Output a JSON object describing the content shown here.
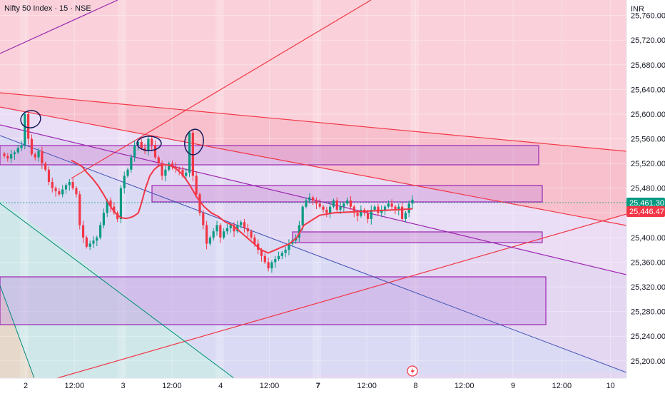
{
  "chart_data": {
    "type": "candlestick",
    "title": "Nifty 50 Index · 15 · NSE",
    "currency": "INR",
    "y_ticks": [
      "25,760.00",
      "25,720.00",
      "25,680.00",
      "25,640.00",
      "25,600.00",
      "25,560.00",
      "25,520.00",
      "25,480.00",
      "25,440.00",
      "25,400.00",
      "25,360.00",
      "25,320.00",
      "25,280.00",
      "25,240.00",
      "25,200.00"
    ],
    "y_tick_values": [
      25760,
      25720,
      25680,
      25640,
      25600,
      25560,
      25520,
      25480,
      25440,
      25400,
      25360,
      25320,
      25280,
      25240,
      25200
    ],
    "ylim": [
      25172,
      25785
    ],
    "x_ticks": [
      {
        "label": "2",
        "bold": false
      },
      {
        "label": "12:00",
        "bold": false
      },
      {
        "label": "3",
        "bold": false
      },
      {
        "label": "12:00",
        "bold": false
      },
      {
        "label": "4",
        "bold": false
      },
      {
        "label": "12:00",
        "bold": false
      },
      {
        "label": "7",
        "bold": true
      },
      {
        "label": "12:00",
        "bold": false
      },
      {
        "label": "8",
        "bold": false
      },
      {
        "label": "12:00",
        "bold": false
      },
      {
        "label": "9",
        "bold": false
      },
      {
        "label": "12:00",
        "bold": false
      },
      {
        "label": "10",
        "bold": false
      }
    ],
    "last_price": {
      "label": "25,461.30",
      "value": 25461.3,
      "color": "#089981"
    },
    "ma_price": {
      "label": "25,446.47",
      "value": 25446.47,
      "color": "#f23645"
    },
    "closes": [
      25532,
      25528,
      25535,
      25538,
      25545,
      25550,
      25600,
      25560,
      25535,
      25530,
      25540,
      25520,
      25510,
      25490,
      25480,
      25475,
      25470,
      25478,
      25485,
      25490,
      25480,
      25470,
      25420,
      25400,
      25385,
      25390,
      25395,
      25400,
      25420,
      25440,
      25460,
      25450,
      25440,
      25430,
      25480,
      25500,
      25510,
      25530,
      25550,
      25555,
      25545,
      25540,
      25560,
      25550,
      25530,
      25520,
      25500,
      25510,
      25520,
      25515,
      25512,
      25510,
      25500,
      25505,
      25570,
      25500,
      25470,
      25440,
      25420,
      25390,
      25400,
      25410,
      25420,
      25400,
      25410,
      25415,
      25420,
      25410,
      25420,
      25425,
      25415,
      25410,
      25400,
      25390,
      25380,
      25370,
      25360,
      25350,
      25360,
      25365,
      25370,
      25375,
      25380,
      25390,
      25395,
      25400,
      25420,
      25450,
      25460,
      25465,
      25460,
      25455,
      25450,
      25445,
      25440,
      25450,
      25460,
      25445,
      25450,
      25455,
      25460,
      25450,
      25440,
      25435,
      25445,
      25440,
      25430,
      25445,
      25450,
      25440,
      25445,
      25450,
      25455,
      25450,
      25445,
      25450,
      25430,
      25440,
      25455,
      25461.3
    ],
    "ma_values": [
      25525,
      25520,
      25515,
      25505,
      25495,
      25483,
      25470,
      25460,
      25450,
      25442,
      25436,
      25432,
      25431,
      25432,
      25435,
      25440,
      25455,
      25480,
      25500,
      25510,
      25516,
      25518,
      25517,
      25512,
      25502,
      25485,
      25465,
      25450,
      25440,
      25434,
      25425,
      25420,
      25410,
      25400,
      25390,
      25380,
      25375,
      25380,
      25385,
      25390,
      25400,
      25420,
      25436,
      25440,
      25442,
      25444,
      25446.47
    ],
    "ma_x": [
      100,
      108,
      115,
      122,
      130,
      138,
      145,
      150,
      155,
      160,
      165,
      170,
      176,
      182,
      188,
      194,
      198,
      204,
      210,
      216,
      222,
      230,
      238,
      246,
      256,
      266,
      276,
      286,
      296,
      306,
      316,
      326,
      336,
      346,
      356,
      366,
      376,
      386,
      396,
      406,
      416,
      426,
      448,
      468,
      500,
      540,
      578
    ]
  },
  "colors": {
    "up": "#089981",
    "down": "#f23645",
    "ma": "#f23645",
    "zone_border": "#9c27b0",
    "zone_fill": "#ce93d8",
    "red_line": "#f23645",
    "purple_line": "#9c27b0",
    "teal_line": "#00897b",
    "navy_line": "#3f51b5"
  },
  "icons": {
    "flash": "lightning-icon"
  }
}
